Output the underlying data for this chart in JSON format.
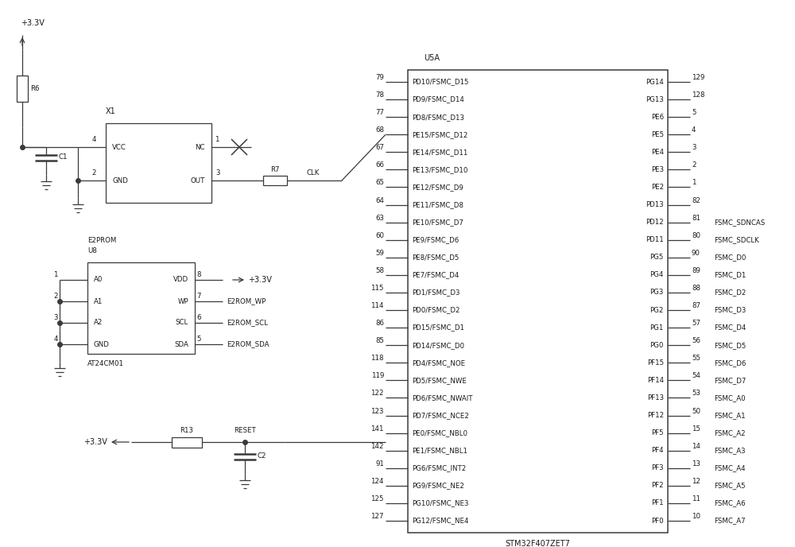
{
  "bg_color": "#ffffff",
  "line_color": "#3a3a3a",
  "text_color": "#1a1a1a",
  "fs": 7.0,
  "fs_sm": 6.2,
  "left_pins": [
    [
      "79",
      "PD10/FSMC_D15"
    ],
    [
      "78",
      "PD9/FSMC_D14"
    ],
    [
      "77",
      "PD8/FSMC_D13"
    ],
    [
      "68",
      "PE15/FSMC_D12"
    ],
    [
      "67",
      "PE14/FSMC_D11"
    ],
    [
      "66",
      "PE13/FSMC_D10"
    ],
    [
      "65",
      "PE12/FSMC_D9"
    ],
    [
      "64",
      "PE11/FSMC_D8"
    ],
    [
      "63",
      "PE10/FSMC_D7"
    ],
    [
      "60",
      "PE9/FSMC_D6"
    ],
    [
      "59",
      "PE8/FSMC_D5"
    ],
    [
      "58",
      "PE7/FSMC_D4"
    ],
    [
      "115",
      "PD1/FSMC_D3"
    ],
    [
      "114",
      "PD0/FSMC_D2"
    ],
    [
      "86",
      "PD15/FSMC_D1"
    ],
    [
      "85",
      "PD14/FSMC_D0"
    ],
    [
      "118",
      "PD4/FSMC_NOE"
    ],
    [
      "119",
      "PD5/FSMC_NWE"
    ],
    [
      "122",
      "PD6/FSMC_NWAIT"
    ],
    [
      "123",
      "PD7/FSMC_NCE2"
    ],
    [
      "141",
      "PE0/FSMC_NBL0"
    ],
    [
      "142",
      "PE1/FSMC_NBL1"
    ],
    [
      "91",
      "PG6/FSMC_INT2"
    ],
    [
      "124",
      "PG9/FSMC_NE2"
    ],
    [
      "125",
      "PG10/FSMC_NE3"
    ],
    [
      "127",
      "PG12/FSMC_NE4"
    ]
  ],
  "right_pins": [
    [
      "PG14",
      "129",
      ""
    ],
    [
      "PG13",
      "128",
      ""
    ],
    [
      "PE6",
      "5",
      ""
    ],
    [
      "PE5",
      "4",
      ""
    ],
    [
      "PE4",
      "3",
      ""
    ],
    [
      "PE3",
      "2",
      ""
    ],
    [
      "PE2",
      "1",
      ""
    ],
    [
      "PD13",
      "82",
      ""
    ],
    [
      "PD12",
      "81",
      "FSMC_SDNCAS"
    ],
    [
      "PD11",
      "80",
      "FSMC_SDCLK"
    ],
    [
      "PG5",
      "90",
      "FSMC_D0"
    ],
    [
      "PG4",
      "89",
      "FSMC_D1"
    ],
    [
      "PG3",
      "88",
      "FSMC_D2"
    ],
    [
      "PG2",
      "87",
      "FSMC_D3"
    ],
    [
      "PG1",
      "57",
      "FSMC_D4"
    ],
    [
      "PG0",
      "56",
      "FSMC_D5"
    ],
    [
      "PF15",
      "55",
      "FSMC_D6"
    ],
    [
      "PF14",
      "54",
      "FSMC_D7"
    ],
    [
      "PF13",
      "53",
      "FSMC_A0"
    ],
    [
      "PF12",
      "50",
      "FSMC_A1"
    ],
    [
      "PF5",
      "15",
      "FSMC_A2"
    ],
    [
      "PF4",
      "14",
      "FSMC_A3"
    ],
    [
      "PF3",
      "13",
      "FSMC_A4"
    ],
    [
      "PF2",
      "12",
      "FSMC_A5"
    ],
    [
      "PF1",
      "11",
      "FSMC_A6"
    ],
    [
      "PF0",
      "10",
      "FSMC_A7"
    ]
  ]
}
